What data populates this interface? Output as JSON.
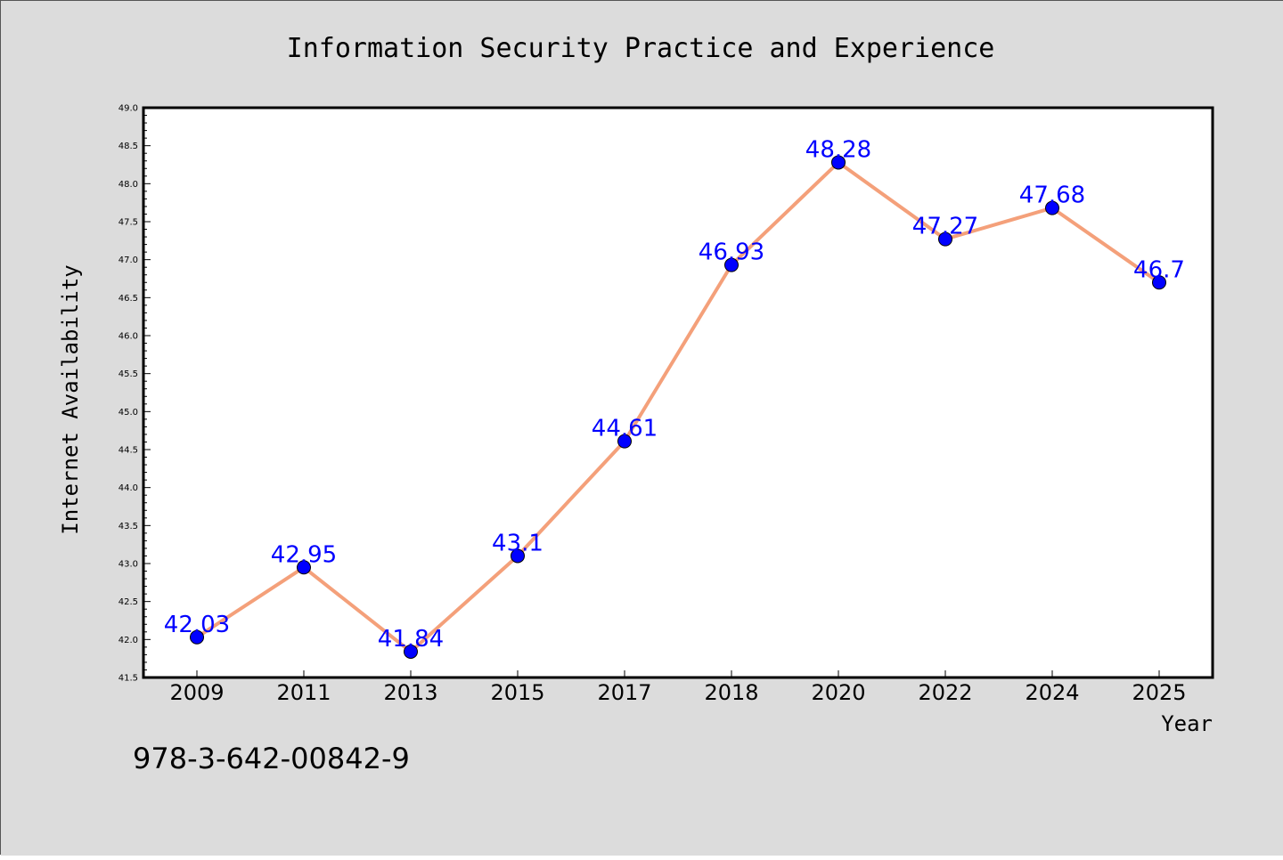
{
  "colors": {
    "background": "#dcdcdc",
    "plot_background": "#ffffff",
    "line": "#f4a07a",
    "marker": "#0000ff",
    "label": "#0000ff"
  },
  "footnote": "978-3-642-00842-9",
  "chart_data": {
    "type": "line",
    "title": "Information Security Practice and Experience",
    "xlabel": "Year",
    "ylabel": "Internet Availability",
    "categories": [
      "2009",
      "2011",
      "2013",
      "2015",
      "2017",
      "2018",
      "2020",
      "2022",
      "2024",
      "2025"
    ],
    "series": [
      {
        "values": [
          42.03,
          42.95,
          41.84,
          43.1,
          44.61,
          46.93,
          48.28,
          47.27,
          47.68,
          46.7
        ]
      }
    ],
    "data_labels": [
      "42.03",
      "42.95",
      "41.84",
      "43.1",
      "44.61",
      "46.93",
      "48.28",
      "47.27",
      "47.68",
      "46.7"
    ],
    "ylim": [
      41.5,
      49.0
    ],
    "yticks": [
      "41.5",
      "42.0",
      "42.5",
      "43.0",
      "43.5",
      "44.0",
      "44.5",
      "45.0",
      "45.5",
      "46.0",
      "46.5",
      "47.0",
      "47.5",
      "48.0",
      "48.5",
      "49.0"
    ],
    "grid": false,
    "legend": "none"
  }
}
